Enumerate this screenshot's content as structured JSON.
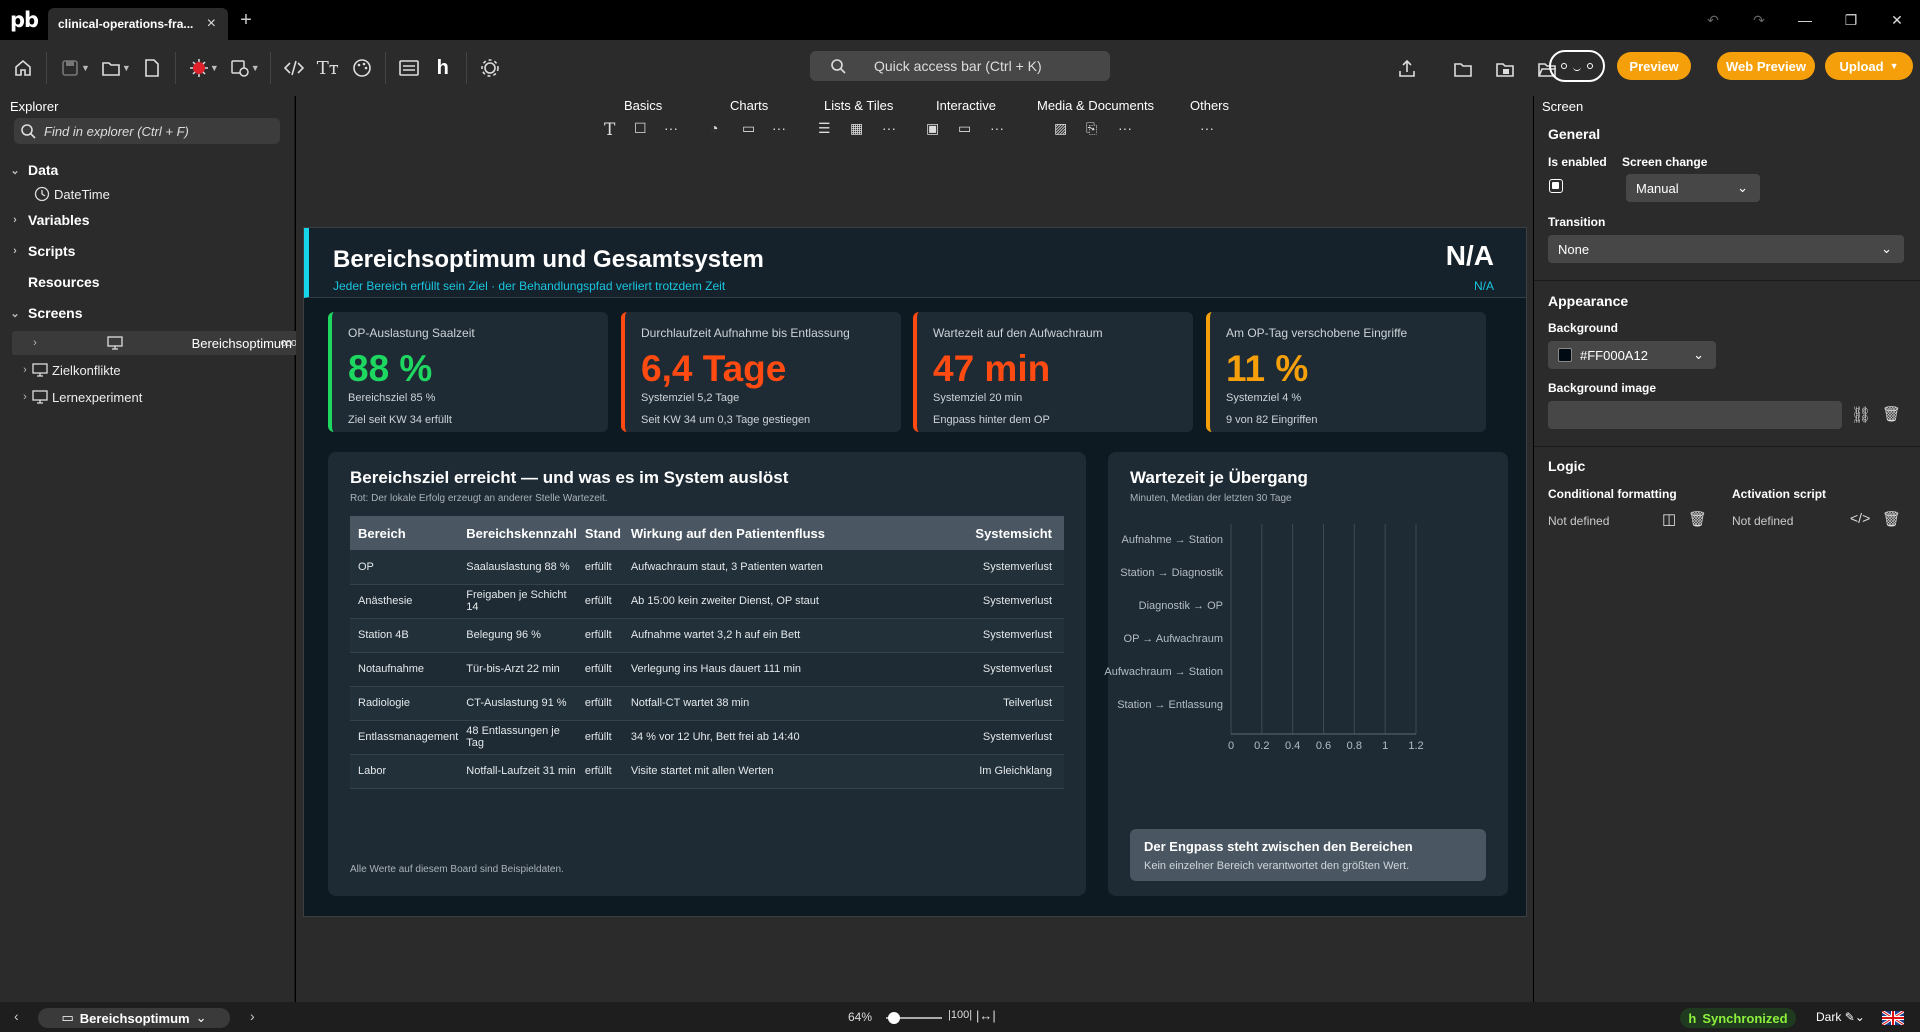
{
  "app": {
    "logo": "pb",
    "tab_title": "clinical-operations-fra...",
    "tab_close": "×",
    "new_tab": "+"
  },
  "window": {
    "undo_icon": "undo-icon",
    "redo_icon": "redo-icon",
    "minimize": "—",
    "restore": "❐",
    "close": "✕"
  },
  "toolbar": {
    "quick_access": "Quick access bar (Ctrl + K)",
    "preview": "Preview",
    "web_preview": "Web Preview",
    "upload": "Upload"
  },
  "explorer": {
    "title": "Explorer",
    "search_placeholder": "Find in explorer (Ctrl + F)",
    "data": "Data",
    "datetime": "DateTime",
    "variables": "Variables",
    "scripts": "Scripts",
    "resources": "Resources",
    "screens": "Screens",
    "screen_items": [
      "Bereichsoptimum",
      "Zielkonflikte",
      "Lernexperiment"
    ],
    "more": "ooo"
  },
  "categories": [
    "Basics",
    "Charts",
    "Lists & Tiles",
    "Interactive",
    "Media & Documents",
    "Others"
  ],
  "dashboard": {
    "title": "Bereichsoptimum und Gesamtsystem",
    "subtitle": "Jeder Bereich erfüllt sein Ziel · der Behandlungspfad verliert trotzdem Zeit",
    "na_big": "N/A",
    "na_small": "N/A",
    "kpis": [
      {
        "label": "OP-Auslastung Saalzeit",
        "value": "88 %",
        "sub": "Bereichsziel 85 %",
        "note": "Ziel seit KW 34 erfüllt",
        "color": "#1ed760"
      },
      {
        "label": "Durchlaufzeit Aufnahme bis Entlassung",
        "value": "6,4 Tage",
        "sub": "Systemziel 5,2 Tage",
        "note": "Seit KW 34 um 0,3 Tage gestiegen",
        "color": "#ff4a12"
      },
      {
        "label": "Wartezeit auf den Aufwachraum",
        "value": "47 min",
        "sub": "Systemziel 20 min",
        "note": "Engpass hinter dem OP",
        "color": "#ff4a12"
      },
      {
        "label": "Am OP-Tag verschobene Eingriffe",
        "value": "11 %",
        "sub": "Systemziel 4 %",
        "note": "9 von 82 Eingriffen",
        "color": "#f5a00a"
      }
    ],
    "table_card": {
      "title": "Bereichsziel erreicht — und was es im System auslöst",
      "subtitle": "Rot: Der lokale Erfolg erzeugt an anderer Stelle Wartezeit.",
      "headers": [
        "Bereich",
        "Bereichskennzahl",
        "Stand",
        "Wirkung auf den Patientenfluss",
        "Systemsicht"
      ],
      "rows": [
        [
          "OP",
          "Saalauslastung 88 %",
          "erfüllt",
          "Aufwachraum staut, 3 Patienten warten",
          "Systemverlust"
        ],
        [
          "Anästhesie",
          "Freigaben je Schicht 14",
          "erfüllt",
          "Ab 15:00 kein zweiter Dienst, OP staut",
          "Systemverlust"
        ],
        [
          "Station 4B",
          "Belegung 96 %",
          "erfüllt",
          "Aufnahme wartet 3,2 h auf ein Bett",
          "Systemverlust"
        ],
        [
          "Notaufnahme",
          "Tür-bis-Arzt 22 min",
          "erfüllt",
          "Verlegung ins Haus dauert 111 min",
          "Systemverlust"
        ],
        [
          "Radiologie",
          "CT-Auslastung 91 %",
          "erfüllt",
          "Notfall-CT wartet 38 min",
          "Teilverlust"
        ],
        [
          "Entlassmanagement",
          "48 Entlassungen je Tag",
          "erfüllt",
          "34 % vor 12 Uhr, Bett frei ab 14:40",
          "Systemverlust"
        ],
        [
          "Labor",
          "Notfall-Laufzeit 31 min",
          "erfüllt",
          "Visite startet mit allen Werten",
          "Im Gleichklang"
        ]
      ],
      "disclaimer": "Alle Werte auf diesem Board sind Beispieldaten."
    },
    "chart_card": {
      "title": "Wartezeit je Übergang",
      "subtitle": "Minuten, Median der letzten 30 Tage",
      "note_title": "Der Engpass steht zwischen den Bereichen",
      "note_text": "Kein einzelner Bereich verantwortet den größten Wert."
    }
  },
  "chart_data": {
    "type": "bar",
    "orientation": "horizontal",
    "title": "Wartezeit je Übergang",
    "subtitle": "Minuten, Median der letzten 30 Tage",
    "categories": [
      "Aufnahme → Station",
      "Station → Diagnostik",
      "Diagnostik → OP",
      "OP → Aufwachraum",
      "Aufwachraum → Station",
      "Station → Entlassung"
    ],
    "values": [
      null,
      null,
      null,
      null,
      null,
      null
    ],
    "xlim": [
      0,
      1.2
    ],
    "xticks": [
      "0",
      "0.2",
      "0.4",
      "0.6",
      "0.8",
      "1",
      "1.2"
    ],
    "grid": true
  },
  "props": {
    "title": "Screen",
    "general": "General",
    "is_enabled": "Is enabled",
    "screen_change": "Screen change",
    "screen_change_value": "Manual",
    "transition": "Transition",
    "transition_value": "None",
    "appearance": "Appearance",
    "background": "Background",
    "background_value": "#FF000A12",
    "background_image": "Background image",
    "logic": "Logic",
    "conditional_formatting": "Conditional formatting",
    "activation_script": "Activation script",
    "not_defined_1": "Not defined",
    "not_defined_2": "Not defined"
  },
  "status": {
    "screen": "Bereichsoptimum",
    "zoom": "64%",
    "sync": "Synchronized",
    "theme": "Dark"
  },
  "colors": {
    "accent": "#f5a00a",
    "cyan": "#16d7ea",
    "green": "#1ed760",
    "red": "#ff4a12",
    "canvas": "#0e1a22"
  }
}
